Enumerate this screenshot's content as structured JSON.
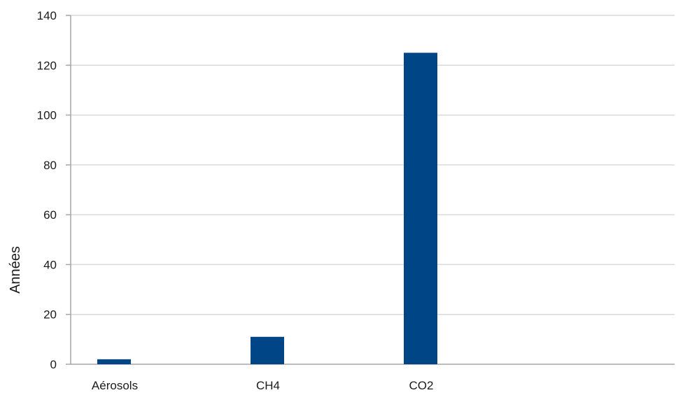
{
  "chart_data": {
    "type": "bar",
    "title": "",
    "xlabel": "",
    "ylabel": "Années",
    "categories": [
      "Aérosols",
      "CH4",
      "CO2"
    ],
    "values": [
      2,
      11,
      125
    ],
    "ylim": [
      0,
      140
    ],
    "yticks": [
      0,
      20,
      40,
      60,
      80,
      100,
      120,
      140
    ],
    "grid": true,
    "legend": "none",
    "colors": {
      "bar": "#004586",
      "grid": "#d9d9d9",
      "axis": "#a6a6a6"
    }
  }
}
